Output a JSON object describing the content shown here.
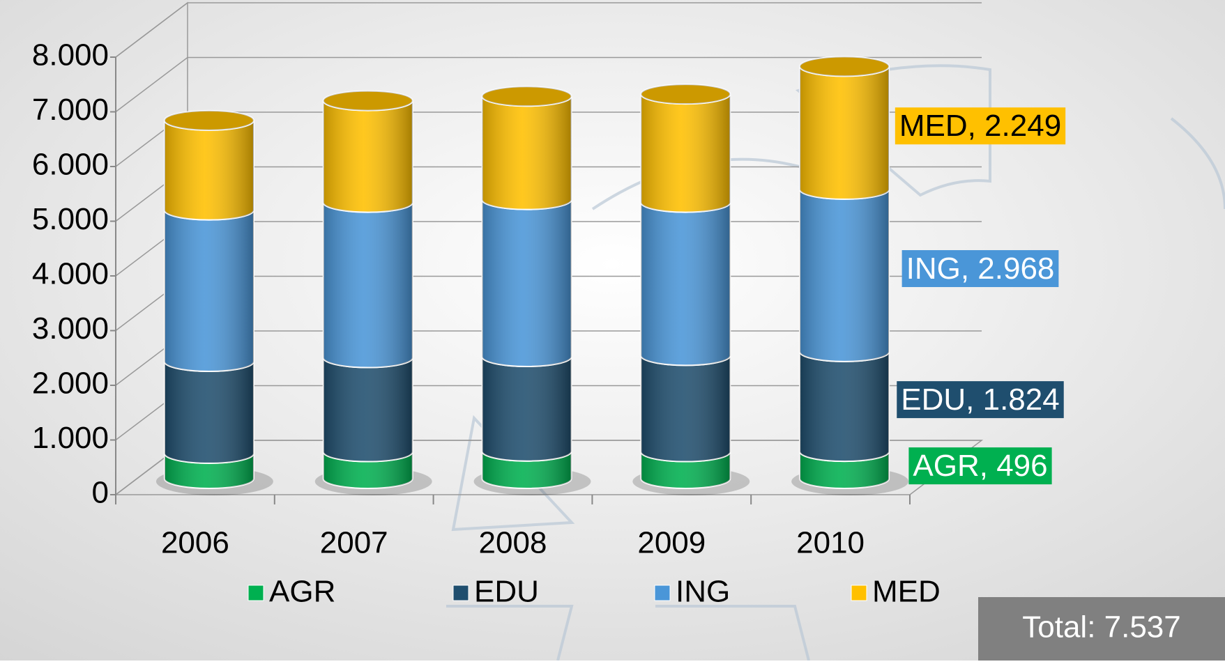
{
  "chart_data": {
    "type": "bar3d-cylinder-stacked",
    "categories": [
      "2006",
      "2007",
      "2008",
      "2009",
      "2010"
    ],
    "series": [
      {
        "name": "AGR",
        "color": "#00b050",
        "values": [
          460,
          490,
          500,
          490,
          496
        ],
        "value_labels": [
          null,
          null,
          null,
          null,
          "AGR, 496"
        ]
      },
      {
        "name": "EDU",
        "color": "#1f4e6e",
        "values": [
          1680,
          1720,
          1730,
          1760,
          1824
        ],
        "value_labels": [
          null,
          null,
          null,
          null,
          "EDU, 1.824"
        ]
      },
      {
        "name": "ING",
        "color": "#4a96d8",
        "values": [
          2770,
          2840,
          2870,
          2800,
          2968
        ],
        "value_labels": [
          null,
          null,
          null,
          null,
          "ING, 2.968"
        ]
      },
      {
        "name": "MED",
        "color": "#ffc000",
        "values": [
          1640,
          1860,
          1890,
          1980,
          2249
        ],
        "value_labels": [
          null,
          null,
          null,
          null,
          "MED, 2.249"
        ]
      }
    ],
    "ylim": [
      0,
      8000
    ],
    "yticks": [
      0,
      {
        "value": 1000,
        "label": "1.000"
      },
      {
        "value": 2000,
        "label": "2.000"
      },
      {
        "value": 3000,
        "label": "3.000"
      },
      {
        "value": 4000,
        "label": "4.000"
      },
      {
        "value": 5000,
        "label": "5.000"
      },
      {
        "value": 6000,
        "label": "6.000"
      },
      {
        "value": 7000,
        "label": "7.000"
      },
      {
        "value": 8000,
        "label": "8.000"
      }
    ],
    "grid": true,
    "stacked": true,
    "legend": "bottom",
    "annotation": "Total: 7.537"
  }
}
